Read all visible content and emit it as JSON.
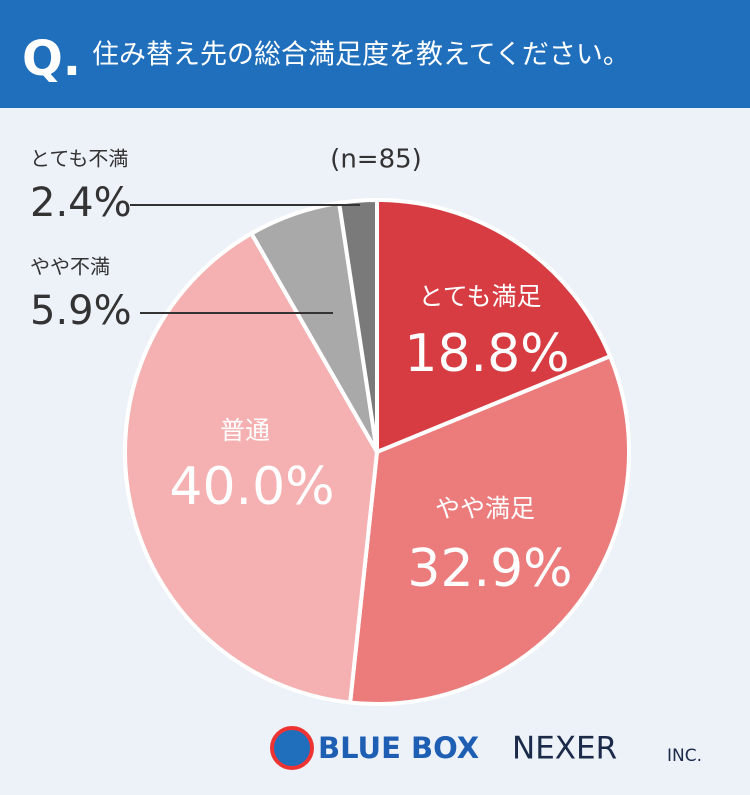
{
  "header": {
    "prefix": "Q.",
    "title": "住み替え先の総合満足度を教えてください。"
  },
  "chart_data": {
    "type": "pie",
    "note": "(n=85)",
    "categories": [
      "とても満足",
      "やや満足",
      "普通",
      "やや不満",
      "とても不満"
    ],
    "values": [
      18.8,
      32.9,
      40.0,
      5.9,
      2.4
    ],
    "value_labels": [
      "18.8%",
      "32.9%",
      "40.0%",
      "5.9%",
      "2.4%"
    ],
    "colors": [
      "#d63c41",
      "#ec7b7b",
      "#f5b1b1",
      "#a9a9a9",
      "#7a7a7a"
    ]
  },
  "footer": {
    "brand1": "BLUE BOX",
    "brand2": "NEXER",
    "brand2_suffix": "INC."
  }
}
